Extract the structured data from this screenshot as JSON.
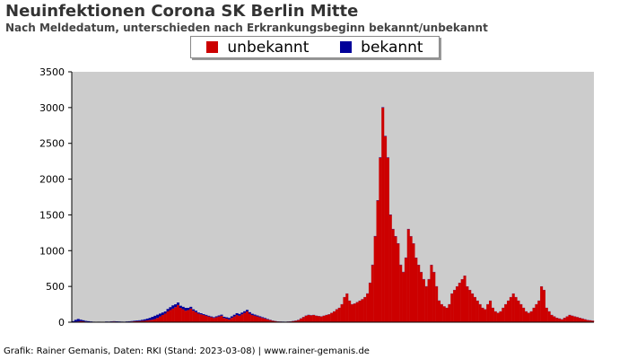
{
  "chart_data": {
    "type": "bar",
    "stacked": true,
    "title": "Neuinfektionen Corona SK Berlin Mitte",
    "subtitle": "Nach Meldedatum, unterschieden nach Erkrankungsbeginn bekannt/unbekannt",
    "ylim": [
      0,
      3500
    ],
    "yticks": [
      0,
      500,
      1000,
      1500,
      2000,
      2500,
      3000,
      3500
    ],
    "grid": false,
    "legend_position": "top-center",
    "background_color": "#cccccc",
    "series": [
      {
        "name": "unbekannt",
        "color": "#cc0000",
        "values": [
          5,
          8,
          10,
          15,
          12,
          8,
          6,
          5,
          4,
          3,
          5,
          4,
          3,
          6,
          5,
          8,
          10,
          7,
          6,
          5,
          4,
          6,
          8,
          10,
          12,
          14,
          15,
          18,
          20,
          25,
          30,
          35,
          45,
          60,
          80,
          100,
          120,
          150,
          170,
          190,
          210,
          240,
          200,
          180,
          160,
          170,
          190,
          160,
          140,
          120,
          110,
          100,
          90,
          80,
          70,
          60,
          70,
          80,
          90,
          60,
          50,
          40,
          60,
          80,
          100,
          90,
          110,
          130,
          150,
          120,
          100,
          90,
          80,
          70,
          60,
          50,
          40,
          30,
          20,
          15,
          10,
          8,
          6,
          5,
          8,
          10,
          15,
          20,
          30,
          50,
          70,
          90,
          100,
          95,
          100,
          90,
          85,
          80,
          90,
          100,
          110,
          130,
          150,
          180,
          200,
          250,
          350,
          400,
          300,
          250,
          260,
          280,
          300,
          320,
          350,
          400,
          550,
          800,
          1200,
          1700,
          2300,
          3000,
          2600,
          2300,
          1500,
          1300,
          1200,
          1100,
          800,
          700,
          900,
          1300,
          1200,
          1100,
          900,
          800,
          700,
          600,
          500,
          600,
          800,
          700,
          500,
          300,
          250,
          220,
          200,
          250,
          400,
          450,
          500,
          550,
          600,
          650,
          500,
          450,
          400,
          350,
          300,
          250,
          200,
          180,
          250,
          300,
          200,
          150,
          130,
          150,
          200,
          250,
          300,
          350,
          400,
          350,
          300,
          250,
          200,
          150,
          130,
          150,
          200,
          250,
          300,
          500,
          450,
          200,
          150,
          100,
          80,
          60,
          50,
          40,
          60,
          80,
          100,
          90,
          80,
          70,
          60,
          50,
          40,
          30,
          25,
          20
        ]
      },
      {
        "name": "bekannt",
        "color": "#000099",
        "values": [
          10,
          25,
          35,
          20,
          15,
          10,
          8,
          5,
          3,
          2,
          2,
          2,
          2,
          3,
          3,
          4,
          4,
          5,
          4,
          3,
          3,
          4,
          5,
          6,
          8,
          10,
          12,
          15,
          20,
          25,
          30,
          40,
          45,
          45,
          40,
          35,
          30,
          35,
          40,
          45,
          40,
          35,
          30,
          35,
          40,
          30,
          25,
          20,
          20,
          15,
          15,
          12,
          12,
          10,
          10,
          10,
          12,
          14,
          15,
          16,
          18,
          20,
          22,
          24,
          26,
          25,
          24,
          23,
          22,
          20,
          18,
          16,
          14,
          12,
          10,
          8,
          6,
          4,
          3,
          2,
          2,
          2,
          2,
          2,
          2,
          2,
          3,
          3,
          3,
          3,
          3,
          3,
          3,
          3,
          2,
          2,
          2,
          2,
          2,
          2,
          2,
          2,
          2,
          2,
          2,
          2,
          2,
          2,
          2,
          2,
          2,
          2,
          2,
          2,
          2,
          3,
          3,
          4,
          5,
          5,
          6,
          6,
          5,
          5,
          5,
          4,
          4,
          4,
          4,
          4,
          4,
          4,
          3,
          3,
          3,
          3,
          3,
          3,
          3,
          3,
          3,
          3,
          3,
          3,
          2,
          2,
          2,
          2,
          2,
          2,
          2,
          2,
          2,
          2,
          2,
          2,
          2,
          2,
          2,
          2,
          2,
          2,
          2,
          2,
          2,
          2,
          2,
          2,
          2,
          2,
          2,
          2,
          2,
          2,
          2,
          2,
          2,
          2,
          2,
          2,
          2,
          2,
          2,
          2,
          2,
          2,
          2,
          2,
          2,
          2,
          2,
          2,
          2,
          2,
          2,
          2,
          2,
          2,
          2,
          2,
          2,
          2,
          2,
          2,
          2,
          2,
          2,
          2,
          2,
          2,
          2,
          2,
          2,
          2
        ]
      }
    ]
  },
  "credit": "Grafik: Rainer Gemanis, Daten: RKI (Stand: 2023-03-08) | www.rainer-gemanis.de"
}
